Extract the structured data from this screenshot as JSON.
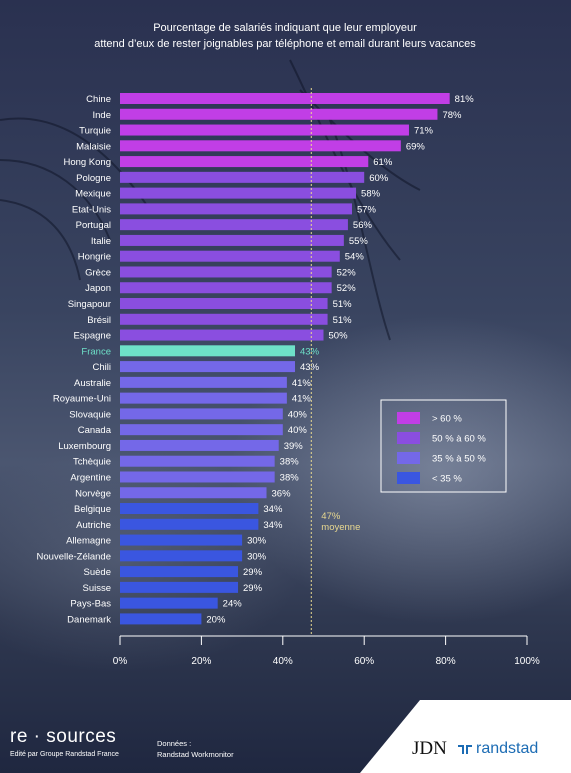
{
  "header": {
    "title_line1": "Pourcentage de salariés indiquant que leur employeur",
    "title_line2": "attend d’eux de rester joignables par téléphone et email durant leurs vacances"
  },
  "chart_data": {
    "type": "bar",
    "orientation": "horizontal",
    "title": "Pourcentage de salariés indiquant que leur employeur attend d’eux de rester joignables par téléphone et email durant leurs vacances",
    "categories": [
      "Chine",
      "Inde",
      "Turquie",
      "Malaisie",
      "Hong Kong",
      "Pologne",
      "Mexique",
      "Etat-Unis",
      "Portugal",
      "Italie",
      "Hongrie",
      "Grèce",
      "Japon",
      "Singapour",
      "Brésil",
      "Espagne",
      "France",
      "Chili",
      "Australie",
      "Royaume-Uni",
      "Slovaquie",
      "Canada",
      "Luxembourg",
      "Tchèquie",
      "Argentine",
      "Norvège",
      "Belgique",
      "Autriche",
      "Allemagne",
      "Nouvelle-Zélande",
      "Suède",
      "Suisse",
      "Pays-Bas",
      "Danemark"
    ],
    "values": [
      81,
      78,
      71,
      69,
      61,
      60,
      58,
      57,
      56,
      55,
      54,
      52,
      52,
      51,
      51,
      50,
      43,
      43,
      41,
      41,
      40,
      40,
      39,
      38,
      38,
      36,
      34,
      34,
      30,
      30,
      29,
      29,
      24,
      20
    ],
    "value_labels": [
      "81%",
      "78%",
      "71%",
      "69%",
      "61%",
      "60%",
      "58%",
      "57%",
      "56%",
      "55%",
      "54%",
      "52%",
      "52%",
      "51%",
      "51%",
      "50%",
      "43%",
      "43%",
      "41%",
      "41%",
      "40%",
      "40%",
      "39%",
      "38%",
      "38%",
      "36%",
      "34%",
      "34%",
      "30%",
      "30%",
      "29%",
      "29%",
      "24%",
      "20%"
    ],
    "highlight": "France",
    "xlim": [
      0,
      100
    ],
    "x_ticks": [
      "0%",
      "20%",
      "40%",
      "60%",
      "80%",
      "100%"
    ],
    "average": {
      "value": 47,
      "label_value": "47%",
      "label_text": "moyenne"
    },
    "legend": {
      "placement": "right",
      "items": [
        {
          "label": "> 60 %",
          "color": "#c13ee6"
        },
        {
          "label": "50 % à 60 %",
          "color": "#8a4ee0"
        },
        {
          "label": "35 % à 50 %",
          "color": "#7468e8"
        },
        {
          "label": "< 35 %",
          "color": "#3a56e0"
        }
      ]
    },
    "colors": {
      "gt60": "#c13ee6",
      "50to60": "#8a4ee0",
      "35to50": "#7468e8",
      "lt35": "#3a56e0",
      "highlight": "#6ee0c8",
      "average_line": "#e8d890",
      "axis": "#ffffff"
    }
  },
  "footer": {
    "brand": "re · sources",
    "brand_sub": "Edité par Groupe Randstad France",
    "data_title": "Données :",
    "data_source": "Randstad Workmonitor",
    "logo_jdn": "JDN",
    "logo_randstad": "randstad"
  }
}
